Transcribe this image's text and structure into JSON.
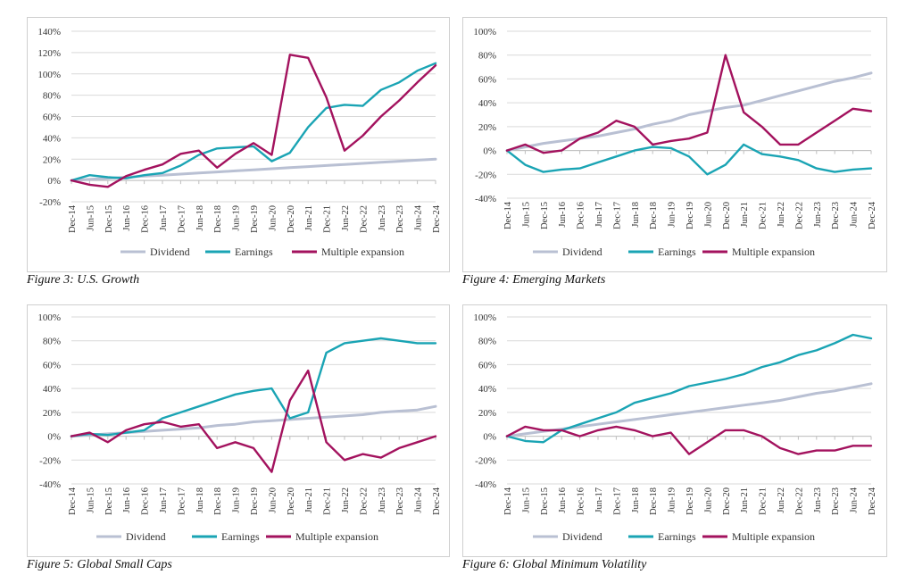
{
  "colors": {
    "dividend": "#b9c0d3",
    "earnings": "#1aa4b4",
    "multiple": "#a3125e",
    "grid": "#d9d9d9",
    "axis": "#bfbfbf",
    "text": "#333333"
  },
  "legend": {
    "dividend": "Dividend",
    "earnings": "Earnings",
    "multiple": "Multiple expansion"
  },
  "x_ticks": [
    "Dec-14",
    "Jun-15",
    "Dec-15",
    "Jun-16",
    "Dec-16",
    "Jun-17",
    "Dec-17",
    "Jun-18",
    "Dec-18",
    "Jun-19",
    "Dec-19",
    "Jun-20",
    "Dec-20",
    "Jun-21",
    "Dec-21",
    "Jun-22",
    "Dec-22",
    "Jun-23",
    "Dec-23",
    "Jun-24",
    "Dec-24"
  ],
  "chart_data": [
    {
      "type": "line",
      "title": "Figure 3: U.S. Growth",
      "y_unit": "%",
      "ylim": [
        -20,
        140
      ],
      "yticks": [
        -20,
        0,
        20,
        40,
        60,
        80,
        100,
        120,
        140
      ],
      "grid": "horizontal",
      "legend_position": "bottom",
      "x_step": "half-year",
      "series": [
        {
          "name": "Dividend",
          "key": "dividend",
          "values": [
            0,
            1,
            2,
            3,
            4,
            5,
            6,
            7,
            8,
            9,
            10,
            11,
            12,
            13,
            14,
            15,
            16,
            17,
            18,
            19,
            20
          ]
        },
        {
          "name": "Earnings",
          "key": "earnings",
          "values": [
            0,
            5,
            3,
            2,
            5,
            7,
            14,
            24,
            30,
            31,
            32,
            18,
            26,
            50,
            68,
            71,
            70,
            85,
            92,
            103,
            110
          ]
        },
        {
          "name": "Multiple expansion",
          "key": "multiple",
          "values": [
            0,
            -4,
            -6,
            4,
            10,
            15,
            25,
            28,
            12,
            25,
            35,
            24,
            118,
            115,
            78,
            28,
            42,
            60,
            75,
            92,
            108
          ]
        }
      ]
    },
    {
      "type": "line",
      "title": "Figure 4: Emerging Markets",
      "y_unit": "%",
      "ylim": [
        -40,
        100
      ],
      "yticks": [
        -40,
        -20,
        0,
        20,
        40,
        60,
        80,
        100
      ],
      "grid": "horizontal",
      "legend_position": "bottom",
      "x_step": "half-year",
      "series": [
        {
          "name": "Dividend",
          "key": "dividend",
          "values": [
            0,
            3,
            6,
            8,
            10,
            12,
            15,
            18,
            22,
            25,
            30,
            33,
            36,
            38,
            42,
            46,
            50,
            54,
            58,
            61,
            65
          ]
        },
        {
          "name": "Earnings",
          "key": "earnings",
          "values": [
            0,
            -12,
            -18,
            -16,
            -15,
            -10,
            -5,
            0,
            3,
            2,
            -5,
            -20,
            -12,
            5,
            -3,
            -5,
            -8,
            -15,
            -18,
            -16,
            -15
          ]
        },
        {
          "name": "Multiple expansion",
          "key": "multiple",
          "values": [
            0,
            5,
            -2,
            0,
            10,
            15,
            25,
            20,
            5,
            8,
            10,
            15,
            80,
            32,
            20,
            5,
            5,
            15,
            25,
            35,
            33
          ]
        }
      ]
    },
    {
      "type": "line",
      "title": "Figure 5: Global Small Caps",
      "y_unit": "%",
      "ylim": [
        -40,
        100
      ],
      "yticks": [
        -40,
        -20,
        0,
        20,
        40,
        60,
        80,
        100
      ],
      "grid": "horizontal",
      "legend_position": "bottom",
      "x_step": "half-year",
      "series": [
        {
          "name": "Dividend",
          "key": "dividend",
          "values": [
            0,
            1,
            2,
            3,
            4,
            5,
            6,
            7,
            9,
            10,
            12,
            13,
            14,
            15,
            16,
            17,
            18,
            20,
            21,
            22,
            25
          ]
        },
        {
          "name": "Earnings",
          "key": "earnings",
          "values": [
            0,
            2,
            1,
            3,
            5,
            15,
            20,
            25,
            30,
            35,
            38,
            40,
            15,
            20,
            70,
            78,
            80,
            82,
            80,
            78,
            78
          ]
        },
        {
          "name": "Multiple expansion",
          "key": "multiple",
          "values": [
            0,
            3,
            -5,
            5,
            10,
            12,
            8,
            10,
            -10,
            -5,
            -10,
            -30,
            30,
            55,
            -5,
            -20,
            -15,
            -18,
            -10,
            -5,
            0
          ]
        }
      ]
    },
    {
      "type": "line",
      "title": "Figure 6: Global Minimum Volatility",
      "y_unit": "%",
      "ylim": [
        -40,
        100
      ],
      "yticks": [
        -40,
        -20,
        0,
        20,
        40,
        60,
        80,
        100
      ],
      "grid": "horizontal",
      "legend_position": "bottom",
      "x_step": "half-year",
      "series": [
        {
          "name": "Dividend",
          "key": "dividend",
          "values": [
            0,
            2,
            4,
            6,
            8,
            10,
            12,
            14,
            16,
            18,
            20,
            22,
            24,
            26,
            28,
            30,
            33,
            36,
            38,
            41,
            44
          ]
        },
        {
          "name": "Earnings",
          "key": "earnings",
          "values": [
            0,
            -4,
            -5,
            5,
            10,
            15,
            20,
            28,
            32,
            36,
            42,
            45,
            48,
            52,
            58,
            62,
            68,
            72,
            78,
            85,
            82
          ]
        },
        {
          "name": "Multiple expansion",
          "key": "multiple",
          "values": [
            0,
            8,
            5,
            5,
            0,
            5,
            8,
            5,
            0,
            3,
            -15,
            -5,
            5,
            5,
            0,
            -10,
            -15,
            -12,
            -12,
            -8,
            -8
          ]
        }
      ]
    }
  ]
}
